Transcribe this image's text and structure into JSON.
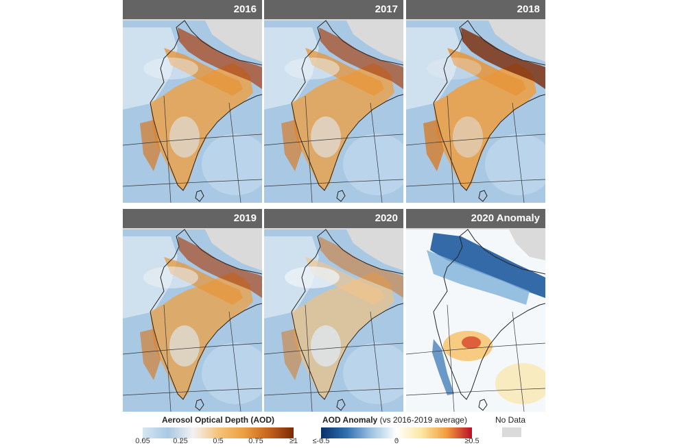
{
  "panels": [
    {
      "title": "2016",
      "variant": "aod",
      "level": 0.55
    },
    {
      "title": "2017",
      "variant": "aod",
      "level": 0.5
    },
    {
      "title": "2018",
      "variant": "aod",
      "level": 0.7
    },
    {
      "title": "2019",
      "variant": "aod",
      "level": 0.45
    },
    {
      "title": "2020",
      "variant": "aod",
      "level": 0.25
    },
    {
      "title": "2020 Anomaly",
      "variant": "anomaly",
      "level": 0.5
    }
  ],
  "legend_aod": {
    "title": "Aerosol Optical Depth (AOD)",
    "ticks": [
      "0.05",
      "0.25",
      "0.5",
      "0.75",
      "≥1"
    ],
    "colors": [
      "#d6e6f3",
      "#a9c8e3",
      "#f2f2f2",
      "#f5c37a",
      "#eda042",
      "#c8641c",
      "#7a2a08"
    ]
  },
  "legend_anomaly": {
    "title_bold": "AOD Anomaly",
    "title_rest": " (vs 2016-2019 average)",
    "ticks": [
      "≤-0.5",
      "0",
      "≥0.5"
    ],
    "colors": [
      "#08306b",
      "#2f6fb0",
      "#9cc3e2",
      "#ffffff",
      "#fbe8a0",
      "#f39a3c",
      "#b8102a"
    ]
  },
  "legend_nodata": {
    "label": "No Data",
    "color": "#dadada"
  }
}
